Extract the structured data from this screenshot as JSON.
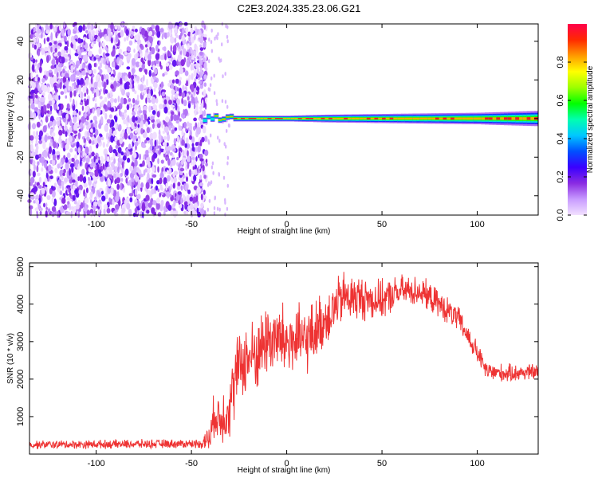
{
  "figure": {
    "title": "C2E3.2024.335.23.06.G21"
  },
  "chart_data": [
    {
      "type": "heatmap",
      "title": "C2E3.2024.335.23.06.G21",
      "xlabel": "Height of straight line (km)",
      "ylabel": "Frequency (Hz)",
      "xlim": [
        -135,
        132
      ],
      "ylim": [
        -50,
        49
      ],
      "xticks": [
        -100,
        -50,
        0,
        50,
        100
      ],
      "yticks": [
        -40,
        -20,
        0,
        20,
        40
      ],
      "noise_region_x": [
        -135,
        -42
      ],
      "transition_x": [
        -42,
        -30
      ],
      "carrier_frequency": 0,
      "carrier_band_halfwidth": [
        {
          "x": -40,
          "hz": 1.5
        },
        {
          "x": 0,
          "hz": 1.5
        },
        {
          "x": 20,
          "hz": 2
        },
        {
          "x": 60,
          "hz": 2.5
        },
        {
          "x": 100,
          "hz": 3
        },
        {
          "x": 132,
          "hz": 4
        }
      ],
      "colorbar": {
        "label": "Normalized spectral amplitude",
        "range": [
          0,
          1
        ],
        "ticks": [
          0.0,
          0.2,
          0.4,
          0.6,
          0.8
        ],
        "colormap": [
          "#f2e1ff",
          "#c89bff",
          "#8a2be2",
          "#3a00ff",
          "#0050ff",
          "#00c8ff",
          "#00ffb0",
          "#00ff00",
          "#9cff00",
          "#ffff00",
          "#ff9a00",
          "#ff2a00",
          "#ff004c"
        ]
      },
      "grid": false,
      "legend": "none"
    },
    {
      "type": "line",
      "xlabel": "Height of straight line (km)",
      "ylabel": "SNR (10 * v/v)",
      "xlim": [
        -135,
        132
      ],
      "ylim": [
        0,
        5100
      ],
      "xticks": [
        -100,
        -50,
        0,
        50,
        100
      ],
      "yticks": [
        1000,
        2000,
        3000,
        4000,
        5000
      ],
      "series": [
        {
          "color": "#ee3333",
          "trend": [
            {
              "x": -135,
              "y": 250
            },
            {
              "x": -45,
              "y": 280
            },
            {
              "x": -40,
              "y": 450
            },
            {
              "x": -38,
              "y": 1100
            },
            {
              "x": -35,
              "y": 900
            },
            {
              "x": -30,
              "y": 1300
            },
            {
              "x": -25,
              "y": 2400
            },
            {
              "x": -15,
              "y": 2700
            },
            {
              "x": -10,
              "y": 3100
            },
            {
              "x": 0,
              "y": 3000
            },
            {
              "x": 10,
              "y": 3000
            },
            {
              "x": 20,
              "y": 3600
            },
            {
              "x": 30,
              "y": 4200
            },
            {
              "x": 50,
              "y": 4100
            },
            {
              "x": 60,
              "y": 4350
            },
            {
              "x": 70,
              "y": 4350
            },
            {
              "x": 80,
              "y": 4000
            },
            {
              "x": 90,
              "y": 3600
            },
            {
              "x": 100,
              "y": 2700
            },
            {
              "x": 105,
              "y": 2200
            },
            {
              "x": 115,
              "y": 2150
            },
            {
              "x": 132,
              "y": 2200
            }
          ],
          "noise_amplitude": [
            {
              "x": -135,
              "y": 130
            },
            {
              "x": -45,
              "y": 140
            },
            {
              "x": -38,
              "y": 700
            },
            {
              "x": -28,
              "y": 1100
            },
            {
              "x": 0,
              "y": 1200
            },
            {
              "x": 20,
              "y": 900
            },
            {
              "x": 60,
              "y": 500
            },
            {
              "x": 90,
              "y": 400
            },
            {
              "x": 105,
              "y": 300
            },
            {
              "x": 132,
              "y": 250
            }
          ]
        }
      ],
      "grid": false,
      "legend": "none"
    }
  ]
}
